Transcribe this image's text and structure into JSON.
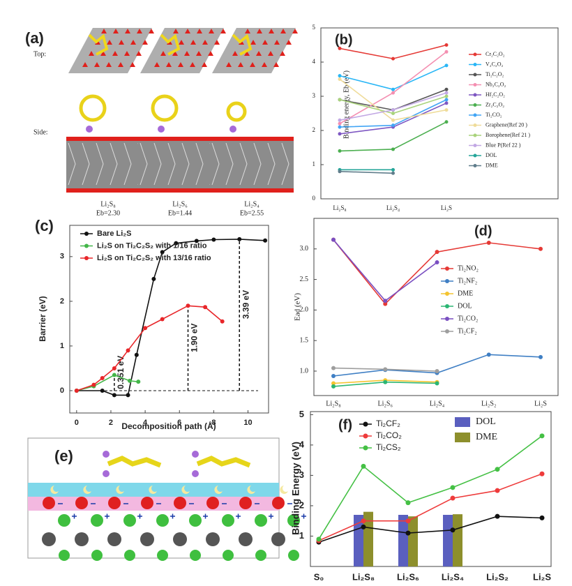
{
  "panel_a": {
    "label": "(a)",
    "top": "Top:",
    "side": "Side:",
    "structures": [
      {
        "name": "Li₂S₈",
        "energy": "Eb=2.30"
      },
      {
        "name": "Li₂S₆",
        "energy": "Eb=1.44"
      },
      {
        "name": "Li₂S₄",
        "energy": "Eb=2.55"
      }
    ]
  },
  "panel_e": {
    "label": "(e)"
  },
  "chart_data": [
    {
      "panel": "(b)",
      "type": "line",
      "ylabel": "Binding energy, Eb (eV)",
      "categories": [
        "Li₂S₈",
        "Li₂S₄",
        "Li₂S"
      ],
      "ylim": [
        0,
        5
      ],
      "yticks": [
        0,
        1,
        2,
        3,
        4,
        5
      ],
      "series": [
        {
          "name": "Cr₂C₂O₂",
          "color": "#e53935",
          "values": [
            4.4,
            4.1,
            4.5
          ]
        },
        {
          "name": "V₂C₂O₂",
          "color": "#29b6f6",
          "values": [
            3.6,
            3.2,
            3.9
          ]
        },
        {
          "name": "Ti₂C₂O₂",
          "color": "#555555",
          "values": [
            2.9,
            2.6,
            3.2
          ]
        },
        {
          "name": "Nb₂C₂O₂",
          "color": "#f48fb1",
          "values": [
            2.2,
            3.1,
            4.3
          ]
        },
        {
          "name": "Hf₂C₂O₂",
          "color": "#7e57c2",
          "values": [
            1.9,
            2.1,
            2.8
          ]
        },
        {
          "name": "Zr₂C₂O₂",
          "color": "#4caf50",
          "values": [
            1.4,
            1.45,
            2.25
          ]
        },
        {
          "name": "Ti₂CO₂",
          "color": "#42a5f5",
          "values": [
            2.1,
            2.15,
            2.9
          ]
        },
        {
          "name": "Graphene(Ref 20 )",
          "color": "#efdc9a",
          "values": [
            3.5,
            2.3,
            2.6
          ]
        },
        {
          "name": "Borophene(Ref 21 )",
          "color": "#a9d37c",
          "values": [
            2.9,
            2.5,
            3.0
          ]
        },
        {
          "name": "Blue P(Ref 22 )",
          "color": "#c2a8e4",
          "values": [
            2.3,
            2.6,
            3.1
          ]
        },
        {
          "name": "DOL",
          "color": "#26a69a",
          "values": [
            0.85,
            0.85,
            null
          ]
        },
        {
          "name": "DME",
          "color": "#607d8b",
          "values": [
            0.8,
            0.75,
            null
          ]
        }
      ]
    },
    {
      "panel": "(c)",
      "type": "line",
      "xlabel": "Decomposition path (Å)",
      "ylabel": "Barrier (eV)",
      "xlim": [
        -0.4,
        11.2
      ],
      "xticks": [
        0,
        2,
        4,
        6,
        8,
        10
      ],
      "ylim": [
        -0.5,
        3.7
      ],
      "yticks": [
        0,
        1,
        2,
        3
      ],
      "series": [
        {
          "name": "Bare Li₂S",
          "color": "#111111",
          "x": [
            0,
            1.5,
            2.2,
            3,
            3.5,
            4.5,
            5,
            5.8,
            7,
            8,
            9.5,
            11
          ],
          "values": [
            0,
            0,
            -0.1,
            -0.1,
            0.8,
            2.5,
            3.1,
            3.3,
            3.35,
            3.38,
            3.39,
            3.36
          ]
        },
        {
          "name": "Li₂S on Ti₂C₂S₂ with 1/16 ratio",
          "color": "#43b649",
          "x": [
            0,
            1,
            2.2,
            3.1,
            3.6
          ],
          "values": [
            0,
            0.1,
            0.35,
            0.22,
            0.2
          ]
        },
        {
          "name": "Li₂S on Ti₂C₂S₂ with 13/16 ratio",
          "color": "#e8262a",
          "x": [
            0,
            1,
            1.5,
            2.2,
            3,
            4,
            5,
            6.5,
            7.5,
            8.5
          ],
          "values": [
            0,
            0.13,
            0.28,
            0.5,
            0.9,
            1.4,
            1.6,
            1.9,
            1.87,
            1.55
          ]
        }
      ],
      "annotations": [
        {
          "label": "0.351 eV",
          "x": 2.2,
          "value": 0.351,
          "color": "#43b649"
        },
        {
          "label": "1.90 eV",
          "x": 6.5,
          "value": 1.9,
          "color": "#e8262a"
        },
        {
          "label": "3.39 eV",
          "x": 9.5,
          "value": 3.39,
          "color": "#111111"
        }
      ]
    },
    {
      "panel": "(d)",
      "type": "line",
      "ylabel": "Ead (eV)",
      "categories": [
        "Li₂S₈",
        "Li₂S₆",
        "Li₂S₄",
        "Li₂S₂",
        "Li₂S"
      ],
      "ylim": [
        0.6,
        3.5
      ],
      "yticks": [
        {
          "value": 1,
          "label": "1.0"
        },
        {
          "value": 1.5,
          "label": "1.5"
        },
        {
          "value": 2,
          "label": "2.0"
        },
        {
          "value": 2.5,
          "label": "2.5"
        },
        {
          "value": 3,
          "label": "3.0"
        }
      ],
      "series": [
        {
          "name": "Ti₂NO₂",
          "color": "#e53935",
          "values": [
            3.15,
            2.1,
            2.95,
            3.1,
            3.0
          ]
        },
        {
          "name": "Ti₂NF₂",
          "color": "#3f7fc4",
          "values": [
            0.92,
            1.02,
            0.97,
            1.27,
            1.23
          ]
        },
        {
          "name": "DME",
          "color": "#f4c430",
          "values": [
            0.8,
            0.85,
            0.82,
            null,
            null
          ]
        },
        {
          "name": "DOL",
          "color": "#2bb673",
          "values": [
            0.75,
            0.82,
            0.8,
            null,
            null
          ]
        },
        {
          "name": "Ti₂CO₂",
          "color": "#7a4fc1",
          "values": [
            3.15,
            2.15,
            2.78,
            null,
            null
          ]
        },
        {
          "name": "Ti₂CF₂",
          "color": "#9e9e9e",
          "values": [
            1.05,
            1.03,
            1.0,
            null,
            null
          ]
        }
      ]
    },
    {
      "panel": "(f)",
      "type": "line",
      "ylabel": "Binding Energy (eV)",
      "categories": [
        "S₀",
        "Li₂S₈",
        "Li₂S₆",
        "Li₂S₄",
        "Li₂S₂",
        "Li₂S"
      ],
      "ylim": [
        0,
        5.1
      ],
      "yticks": [
        1,
        2,
        3,
        4,
        5
      ],
      "series": [
        {
          "name": "DOL",
          "type": "bar",
          "color": "#5a5fbf",
          "values": [
            null,
            1.7,
            1.7,
            1.7,
            null,
            null
          ]
        },
        {
          "name": "DME",
          "type": "bar",
          "color": "#8d8f2c",
          "values": [
            null,
            1.8,
            1.65,
            1.72,
            null,
            null
          ]
        },
        {
          "name": "Ti₂CF₂",
          "color": "#111111",
          "values": [
            0.8,
            1.3,
            1.1,
            1.2,
            1.65,
            1.6
          ]
        },
        {
          "name": "Ti₂CO₂",
          "color": "#ee3b3b",
          "values": [
            0.85,
            1.5,
            1.5,
            2.25,
            2.5,
            3.05
          ]
        },
        {
          "name": "Ti₂CS₂",
          "color": "#44c044",
          "values": [
            0.9,
            3.3,
            2.1,
            2.6,
            3.2,
            4.3
          ]
        }
      ]
    }
  ]
}
